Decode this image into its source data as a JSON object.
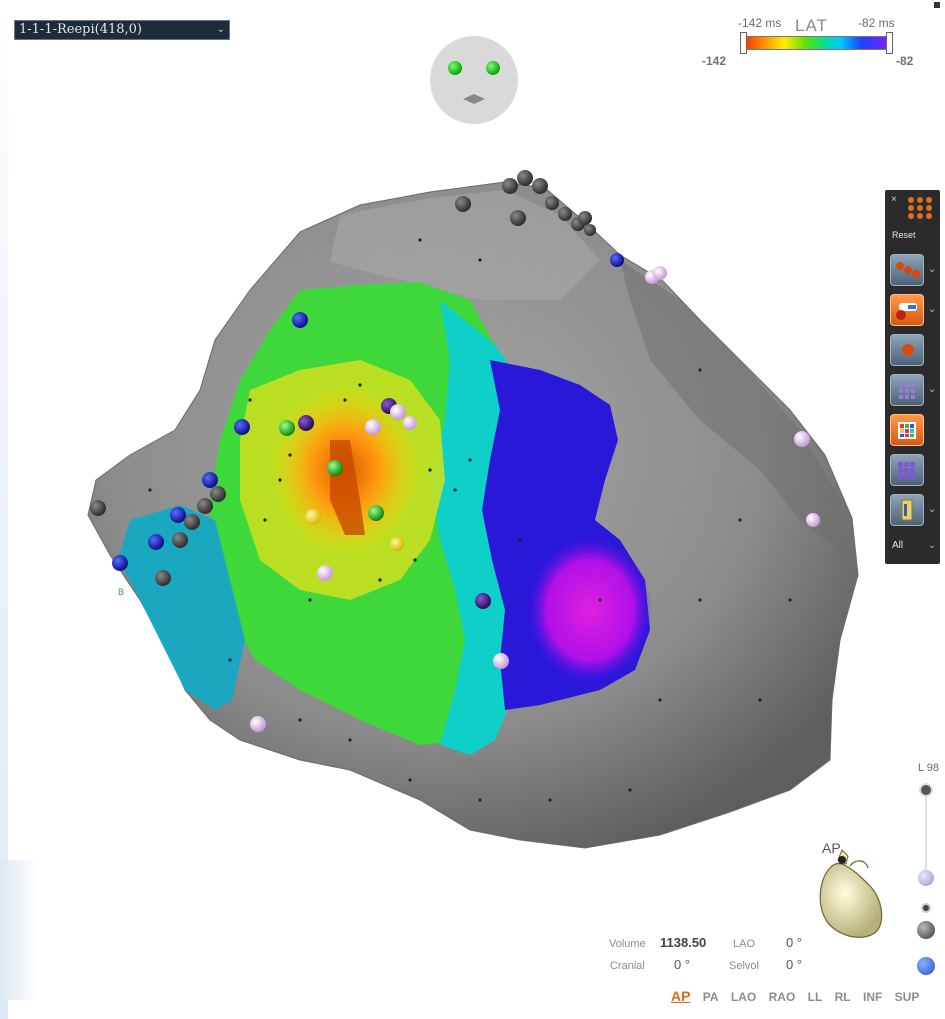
{
  "map_selector": {
    "value": "1-1-1-Reepi(418,0)"
  },
  "lat_scale": {
    "min_label": "-142 ms",
    "title": "LAT",
    "max_label": "-82 ms",
    "min_value": "-142",
    "max_value": "-82",
    "gradient_colors": [
      "#ff2a00",
      "#ff9000",
      "#ffee00",
      "#60e000",
      "#00e0a0",
      "#00c8ff",
      "#2040ff",
      "#8020ff"
    ]
  },
  "toolbar": {
    "close_glyph": "×",
    "reset_label": "Reset",
    "all_label": "All",
    "buttons": [
      {
        "name": "points-tool",
        "active": false
      },
      {
        "name": "catheter-tool",
        "active": true
      },
      {
        "name": "single-point-tool",
        "active": false
      },
      {
        "name": "grid-tool",
        "active": false
      },
      {
        "name": "color-grid-tool",
        "active": true
      },
      {
        "name": "mesh-tool",
        "active": false
      },
      {
        "name": "clip-tool",
        "active": false
      }
    ]
  },
  "zoom": {
    "label": "L 98"
  },
  "orientation": {
    "heart_label": "AP"
  },
  "stats": {
    "volume_label": "Volume",
    "volume_value": "1138.50",
    "lao_label": "LAO",
    "lao_value": "0 °",
    "cranial_label": "Cranial",
    "cranial_value": "0 °",
    "selvol_label": "Selvol",
    "selvol_value": "0 °"
  },
  "views": [
    "AP",
    "PA",
    "LAO",
    "RAO",
    "LL",
    "RL",
    "INF",
    "SUP"
  ],
  "active_view": "AP",
  "small_label": "B",
  "colors": {
    "surface": "#8d8d8d",
    "background": "#ffffff",
    "accent": "#d96a1f"
  }
}
